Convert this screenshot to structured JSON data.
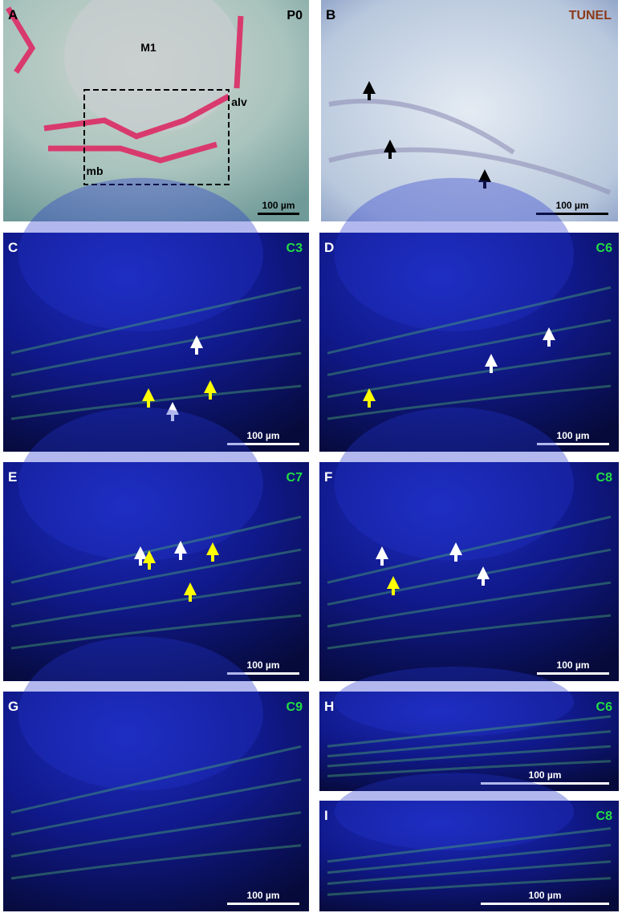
{
  "panels": [
    {
      "letter": "A",
      "marker": "P0",
      "scale": "100 µm",
      "labels": [
        "M1",
        "alv",
        "mb"
      ]
    },
    {
      "letter": "B",
      "marker": "TUNEL",
      "scale": "100 µm"
    },
    {
      "letter": "C",
      "marker": "C3",
      "scale": "100 µm"
    },
    {
      "letter": "D",
      "marker": "C6",
      "scale": "100 µm"
    },
    {
      "letter": "E",
      "marker": "C7",
      "scale": "100 µm"
    },
    {
      "letter": "F",
      "marker": "C8",
      "scale": "100 µm"
    },
    {
      "letter": "G",
      "marker": "C9",
      "scale": "100 µm"
    },
    {
      "letter": "H",
      "marker": "C6",
      "scale": "100 µm"
    },
    {
      "letter": "I",
      "marker": "C8",
      "scale": "100 µm"
    }
  ]
}
